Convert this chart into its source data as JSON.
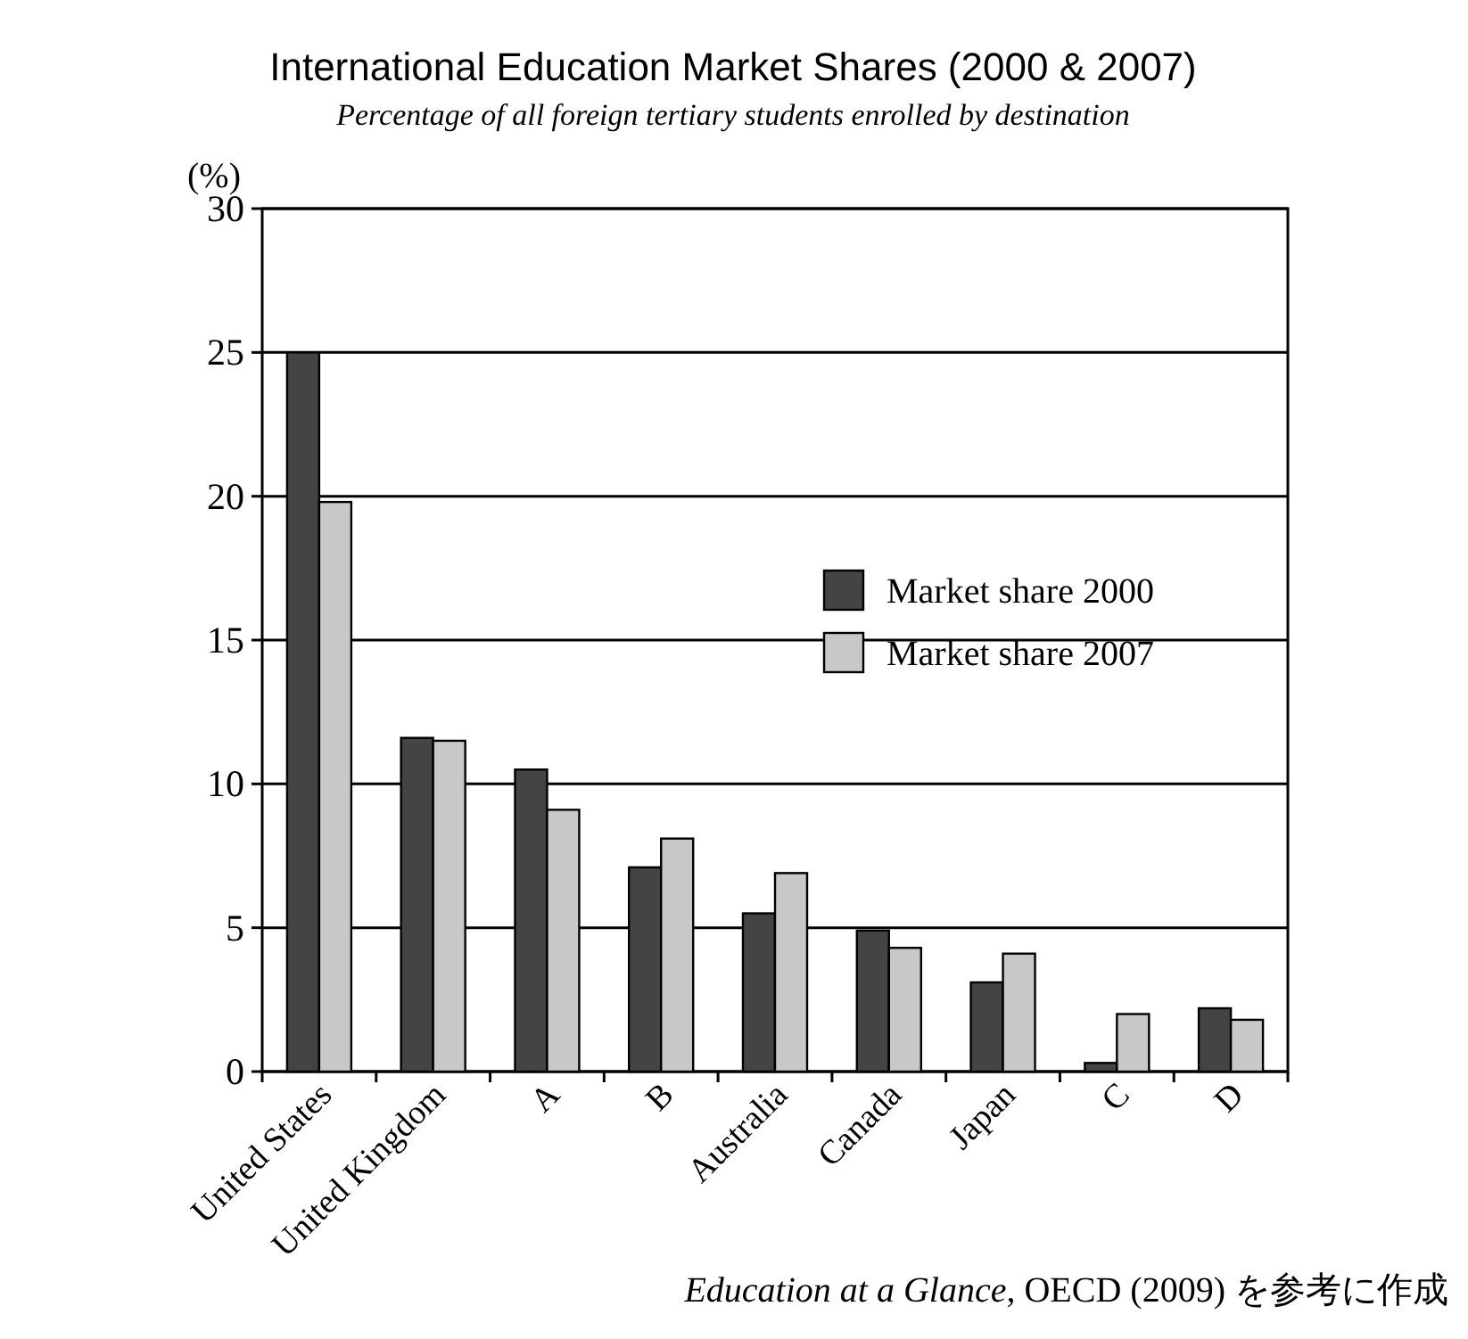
{
  "chart_data": {
    "type": "bar",
    "title": "International Education Market Shares (2000 & 2007)",
    "subtitle": "Percentage of all foreign tertiary students enrolled by destination",
    "ylabel": "(%)",
    "annotations": [
      "*Education at a Glance*, OECD (2009) を参考に作成"
    ],
    "categories": [
      "United States",
      "United Kingdom",
      "A",
      "B",
      "Australia",
      "Canada",
      "Japan",
      "C",
      "D"
    ],
    "series": [
      {
        "name": "Market share 2000",
        "color": "#444444",
        "values": [
          25,
          11.6,
          10.5,
          7.1,
          5.5,
          4.9,
          3.1,
          0.3,
          2.2
        ]
      },
      {
        "name": "Market share 2007",
        "color": "#c8c8c8",
        "values": [
          19.8,
          11.5,
          9.1,
          8.1,
          6.9,
          4.3,
          4.1,
          2.0,
          1.8
        ]
      }
    ],
    "ylim": [
      0,
      30
    ],
    "yticks": [
      0,
      5,
      10,
      15,
      20,
      25,
      30
    ],
    "grid": "y",
    "legend": "top right"
  }
}
